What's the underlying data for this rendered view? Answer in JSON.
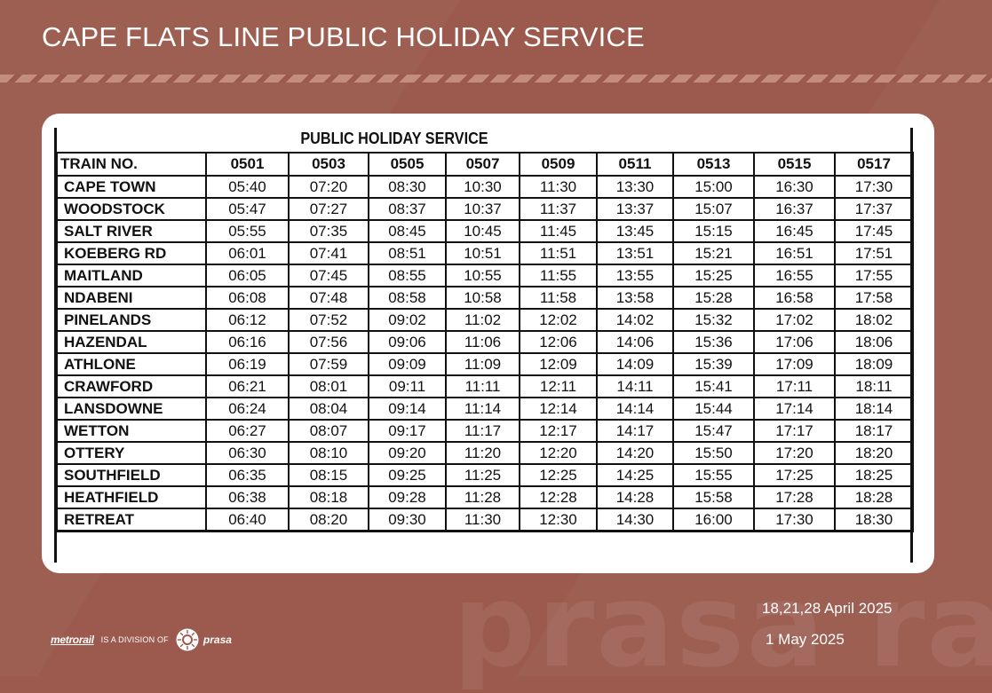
{
  "page": {
    "title": "CAPE FLATS LINE PUBLIC HOLIDAY SERVICE"
  },
  "table": {
    "heading": "PUBLIC HOLIDAY SERVICE",
    "row_label_header": "TRAIN NO.",
    "train_numbers": [
      "0501",
      "0503",
      "0505",
      "0507",
      "0509",
      "0511",
      "0513",
      "0515",
      "0517"
    ],
    "rows": [
      {
        "station": "CAPE TOWN",
        "times": [
          "05:40",
          "07:20",
          "08:30",
          "10:30",
          "11:30",
          "13:30",
          "15:00",
          "16:30",
          "17:30"
        ]
      },
      {
        "station": "WOODSTOCK",
        "times": [
          "05:47",
          "07:27",
          "08:37",
          "10:37",
          "11:37",
          "13:37",
          "15:07",
          "16:37",
          "17:37"
        ]
      },
      {
        "station": "SALT RIVER",
        "times": [
          "05:55",
          "07:35",
          "08:45",
          "10:45",
          "11:45",
          "13:45",
          "15:15",
          "16:45",
          "17:45"
        ]
      },
      {
        "station": "KOEBERG RD",
        "times": [
          "06:01",
          "07:41",
          "08:51",
          "10:51",
          "11:51",
          "13:51",
          "15:21",
          "16:51",
          "17:51"
        ]
      },
      {
        "station": "MAITLAND",
        "times": [
          "06:05",
          "07:45",
          "08:55",
          "10:55",
          "11:55",
          "13:55",
          "15:25",
          "16:55",
          "17:55"
        ]
      },
      {
        "station": "NDABENI",
        "times": [
          "06:08",
          "07:48",
          "08:58",
          "10:58",
          "11:58",
          "13:58",
          "15:28",
          "16:58",
          "17:58"
        ]
      },
      {
        "station": "PINELANDS",
        "times": [
          "06:12",
          "07:52",
          "09:02",
          "11:02",
          "12:02",
          "14:02",
          "15:32",
          "17:02",
          "18:02"
        ]
      },
      {
        "station": "HAZENDAL",
        "times": [
          "06:16",
          "07:56",
          "09:06",
          "11:06",
          "12:06",
          "14:06",
          "15:36",
          "17:06",
          "18:06"
        ]
      },
      {
        "station": "ATHLONE",
        "times": [
          "06:19",
          "07:59",
          "09:09",
          "11:09",
          "12:09",
          "14:09",
          "15:39",
          "17:09",
          "18:09"
        ]
      },
      {
        "station": "CRAWFORD",
        "times": [
          "06:21",
          "08:01",
          "09:11",
          "11:11",
          "12:11",
          "14:11",
          "15:41",
          "17:11",
          "18:11"
        ]
      },
      {
        "station": "LANSDOWNE",
        "times": [
          "06:24",
          "08:04",
          "09:14",
          "11:14",
          "12:14",
          "14:14",
          "15:44",
          "17:14",
          "18:14"
        ]
      },
      {
        "station": "WETTON",
        "times": [
          "06:27",
          "08:07",
          "09:17",
          "11:17",
          "12:17",
          "14:17",
          "15:47",
          "17:17",
          "18:17"
        ]
      },
      {
        "station": "OTTERY",
        "times": [
          "06:30",
          "08:10",
          "09:20",
          "11:20",
          "12:20",
          "14:20",
          "15:50",
          "17:20",
          "18:20"
        ]
      },
      {
        "station": "SOUTHFIELD",
        "times": [
          "06:35",
          "08:15",
          "09:25",
          "11:25",
          "12:25",
          "14:25",
          "15:55",
          "17:25",
          "18:25"
        ]
      },
      {
        "station": "HEATHFIELD",
        "times": [
          "06:38",
          "08:18",
          "09:28",
          "11:28",
          "12:28",
          "14:28",
          "15:58",
          "17:28",
          "18:28"
        ]
      },
      {
        "station": "RETREAT",
        "times": [
          "06:40",
          "08:20",
          "09:30",
          "11:30",
          "12:30",
          "14:30",
          "16:00",
          "17:30",
          "18:30"
        ]
      }
    ]
  },
  "dates": {
    "line1": "18,21,28 April 2025",
    "line2": "1 May 2025"
  },
  "footer": {
    "metrorail_logo": "metrorail",
    "division_text": "IS A DIVISION OF",
    "prasa_logo": "prasa"
  },
  "watermark": "prasa rail",
  "colors": {
    "background": "#9b5a4d",
    "card": "#ffffff",
    "text_dark": "#111111",
    "text_light": "#ffffff"
  }
}
